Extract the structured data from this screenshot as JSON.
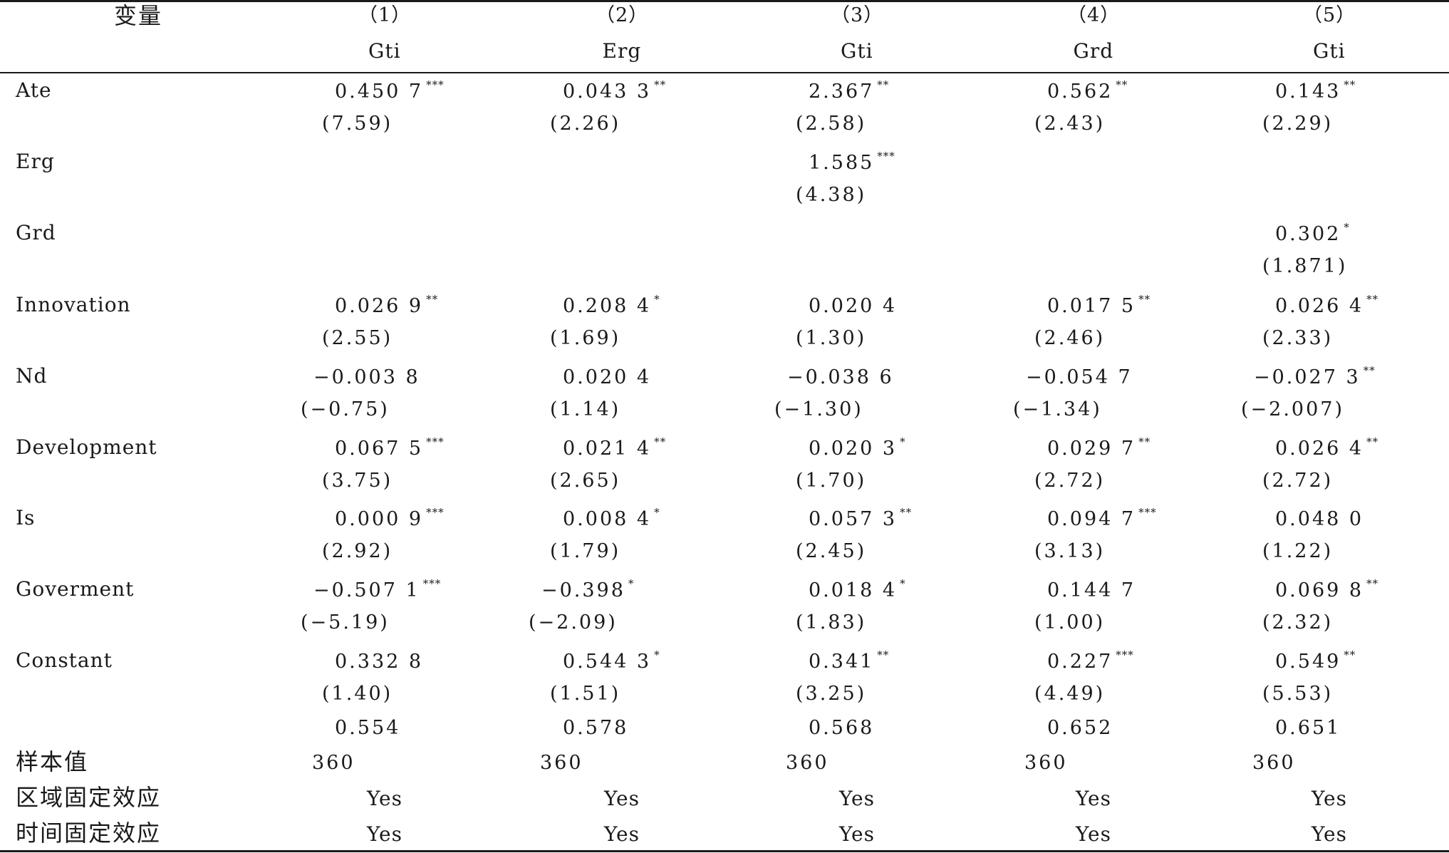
{
  "header": {
    "variable_label": "变量",
    "columns": [
      {
        "number": "（1）",
        "dependent": "Gti"
      },
      {
        "number": "（2）",
        "dependent": "Erg"
      },
      {
        "number": "（3）",
        "dependent": "Gti"
      },
      {
        "number": "（4）",
        "dependent": "Grd"
      },
      {
        "number": "（5）",
        "dependent": "Gti"
      }
    ]
  },
  "rows": [
    {
      "variable": "Ate",
      "coef": [
        {
          "v": "0.450 7",
          "s": "***"
        },
        {
          "v": "0.043 3",
          "s": "**"
        },
        {
          "v": "2.367",
          "s": "**"
        },
        {
          "v": "0.562",
          "s": "**"
        },
        {
          "v": "0.143",
          "s": "**"
        }
      ],
      "t": [
        "(7.59)",
        "(2.26)",
        "(2.58)",
        "(2.43)",
        "(2.29)"
      ]
    },
    {
      "variable": "Erg",
      "coef": [
        {
          "v": "",
          "s": ""
        },
        {
          "v": "",
          "s": ""
        },
        {
          "v": "1.585",
          "s": "***"
        },
        {
          "v": "",
          "s": ""
        },
        {
          "v": "",
          "s": ""
        }
      ],
      "t": [
        "",
        "",
        "(4.38)",
        "",
        ""
      ]
    },
    {
      "variable": "Grd",
      "coef": [
        {
          "v": "",
          "s": ""
        },
        {
          "v": "",
          "s": ""
        },
        {
          "v": "",
          "s": ""
        },
        {
          "v": "",
          "s": ""
        },
        {
          "v": "0.302",
          "s": "*"
        }
      ],
      "t": [
        "",
        "",
        "",
        "",
        "(1.871)"
      ]
    },
    {
      "variable": "Innovation",
      "coef": [
        {
          "v": "0.026 9",
          "s": "**"
        },
        {
          "v": "0.208 4",
          "s": "*"
        },
        {
          "v": "0.020 4",
          "s": ""
        },
        {
          "v": "0.017 5",
          "s": "**"
        },
        {
          "v": "0.026 4",
          "s": "**"
        }
      ],
      "t": [
        "(2.55)",
        "(1.69)",
        "(1.30)",
        "(2.46)",
        "(2.33)"
      ]
    },
    {
      "variable": "Nd",
      "coef": [
        {
          "v": "−0.003 8",
          "s": ""
        },
        {
          "v": "0.020 4",
          "s": ""
        },
        {
          "v": "−0.038 6",
          "s": ""
        },
        {
          "v": "−0.054 7",
          "s": ""
        },
        {
          "v": "−0.027 3",
          "s": "**"
        }
      ],
      "t": [
        "(−0.75)",
        "(1.14)",
        "(−1.30)",
        "(−1.34)",
        "(−2.007)"
      ]
    },
    {
      "variable": "Development",
      "coef": [
        {
          "v": "0.067 5",
          "s": "***"
        },
        {
          "v": "0.021 4",
          "s": "**"
        },
        {
          "v": "0.020 3",
          "s": "*"
        },
        {
          "v": "0.029 7",
          "s": "**"
        },
        {
          "v": "0.026 4",
          "s": "**"
        }
      ],
      "t": [
        "(3.75)",
        "(2.65)",
        "(1.70)",
        "(2.72)",
        "(2.72)"
      ]
    },
    {
      "variable": "Is",
      "coef": [
        {
          "v": "0.000 9",
          "s": "***"
        },
        {
          "v": "0.008 4",
          "s": "*"
        },
        {
          "v": "0.057 3",
          "s": "**"
        },
        {
          "v": "0.094 7",
          "s": "***"
        },
        {
          "v": "0.048 0",
          "s": ""
        }
      ],
      "t": [
        "(2.92)",
        "(1.79)",
        "(2.45)",
        "(3.13)",
        "(1.22)"
      ]
    },
    {
      "variable": "Goverment",
      "coef": [
        {
          "v": "−0.507 1",
          "s": "***"
        },
        {
          "v": "−0.398",
          "s": "*"
        },
        {
          "v": "0.018 4",
          "s": "*"
        },
        {
          "v": "0.144 7",
          "s": ""
        },
        {
          "v": "0.069 8",
          "s": "**"
        }
      ],
      "t": [
        "(−5.19)",
        "(−2.09)",
        "(1.83)",
        "(1.00)",
        "(2.32)"
      ]
    },
    {
      "variable": "Constant",
      "coef": [
        {
          "v": "0.332 8",
          "s": ""
        },
        {
          "v": "0.544 3",
          "s": "*"
        },
        {
          "v": "0.341",
          "s": "**"
        },
        {
          "v": "0.227",
          "s": "***"
        },
        {
          "v": "0.549",
          "s": "**"
        }
      ],
      "t": [
        "(1.40)",
        "(1.51)",
        "(3.25)",
        "(4.49)",
        "(5.53)"
      ]
    }
  ],
  "r2_row": [
    "0.554",
    "0.578",
    "0.568",
    "0.652",
    "0.651"
  ],
  "footer_rows": [
    {
      "label": "样本值",
      "values": [
        "360",
        "360",
        "360",
        "360",
        "360"
      ]
    },
    {
      "label": "区域固定效应",
      "values": [
        "Yes",
        "Yes",
        "Yes",
        "Yes",
        "Yes"
      ]
    },
    {
      "label": "时间固定效应",
      "values": [
        "Yes",
        "Yes",
        "Yes",
        "Yes",
        "Yes"
      ]
    }
  ]
}
